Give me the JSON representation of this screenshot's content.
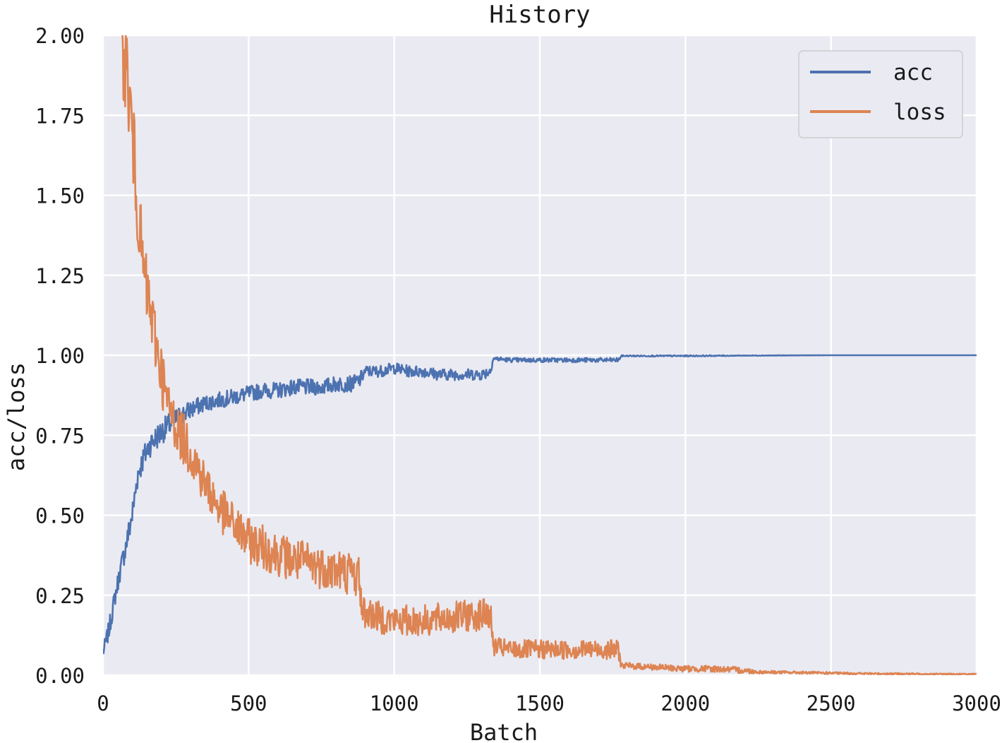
{
  "chart_data": {
    "type": "line",
    "title": "History",
    "xlabel": "Batch",
    "ylabel": "acc/loss",
    "xlim": [
      0,
      3000
    ],
    "ylim": [
      0,
      2.0
    ],
    "xticks": [
      0,
      500,
      1000,
      1500,
      2000,
      2500,
      3000
    ],
    "xtick_labels": [
      "0",
      "500",
      "1000",
      "1500",
      "2000",
      "2500",
      "3000"
    ],
    "yticks": [
      0,
      0.25,
      0.5,
      0.75,
      1.0,
      1.25,
      1.5,
      1.75,
      2.0
    ],
    "ytick_labels": [
      "0.00",
      "0.25",
      "0.50",
      "0.75",
      "1.00",
      "1.25",
      "1.50",
      "1.75",
      "2.00"
    ],
    "grid": true,
    "legend": "top-right",
    "background": "#eaeaf2",
    "series": [
      {
        "name": "acc",
        "color": "#4c72b0",
        "x": [
          0,
          20,
          40,
          60,
          80,
          100,
          120,
          140,
          160,
          180,
          200,
          250,
          300,
          350,
          400,
          450,
          500,
          550,
          600,
          650,
          700,
          750,
          800,
          850,
          880,
          900,
          950,
          1000,
          1050,
          1100,
          1150,
          1200,
          1250,
          1300,
          1330,
          1340,
          1400,
          1500,
          1600,
          1700,
          1770,
          1780,
          1900,
          2000,
          2200,
          2500,
          2800,
          3000
        ],
        "y": [
          0.07,
          0.14,
          0.24,
          0.33,
          0.41,
          0.5,
          0.63,
          0.68,
          0.72,
          0.74,
          0.76,
          0.8,
          0.83,
          0.85,
          0.86,
          0.87,
          0.88,
          0.89,
          0.89,
          0.9,
          0.9,
          0.9,
          0.91,
          0.91,
          0.92,
          0.95,
          0.95,
          0.96,
          0.95,
          0.95,
          0.94,
          0.94,
          0.94,
          0.94,
          0.95,
          0.99,
          0.985,
          0.985,
          0.985,
          0.985,
          0.985,
          0.998,
          0.998,
          0.998,
          0.999,
          1.0,
          1.0,
          1.0
        ],
        "noise": [
          0.02,
          0.03,
          0.03,
          0.03,
          0.04,
          0.04,
          0.04,
          0.04,
          0.04,
          0.04,
          0.04,
          0.035,
          0.03,
          0.025,
          0.025,
          0.025,
          0.025,
          0.025,
          0.025,
          0.025,
          0.025,
          0.025,
          0.025,
          0.025,
          0.025,
          0.018,
          0.018,
          0.018,
          0.018,
          0.018,
          0.018,
          0.018,
          0.018,
          0.018,
          0.018,
          0.007,
          0.007,
          0.007,
          0.007,
          0.007,
          0.007,
          0.002,
          0.002,
          0.002,
          0.001,
          0.0,
          0.0,
          0.0
        ]
      },
      {
        "name": "loss",
        "color": "#dd8452",
        "x": [
          60,
          80,
          100,
          120,
          140,
          160,
          180,
          200,
          220,
          250,
          300,
          350,
          400,
          450,
          500,
          550,
          600,
          650,
          700,
          750,
          800,
          850,
          880,
          890,
          950,
          1000,
          1100,
          1200,
          1300,
          1330,
          1340,
          1400,
          1500,
          1600,
          1700,
          1770,
          1780,
          1900,
          2000,
          2100,
          2200,
          2250,
          2400,
          2600,
          2800,
          3000
        ],
        "y": [
          2.0,
          1.9,
          1.7,
          1.45,
          1.25,
          1.15,
          1.05,
          0.95,
          0.85,
          0.78,
          0.7,
          0.6,
          0.52,
          0.47,
          0.42,
          0.4,
          0.38,
          0.36,
          0.35,
          0.34,
          0.33,
          0.32,
          0.31,
          0.2,
          0.18,
          0.17,
          0.17,
          0.18,
          0.19,
          0.19,
          0.09,
          0.08,
          0.08,
          0.08,
          0.08,
          0.08,
          0.03,
          0.025,
          0.02,
          0.02,
          0.015,
          0.01,
          0.008,
          0.005,
          0.004,
          0.003
        ],
        "noise": [
          0.15,
          0.15,
          0.15,
          0.12,
          0.12,
          0.1,
          0.1,
          0.1,
          0.08,
          0.08,
          0.08,
          0.07,
          0.07,
          0.07,
          0.07,
          0.07,
          0.07,
          0.07,
          0.07,
          0.07,
          0.07,
          0.07,
          0.07,
          0.05,
          0.05,
          0.05,
          0.05,
          0.05,
          0.05,
          0.05,
          0.03,
          0.03,
          0.03,
          0.03,
          0.03,
          0.03,
          0.01,
          0.01,
          0.01,
          0.01,
          0.01,
          0.005,
          0.004,
          0.003,
          0.002,
          0.002
        ]
      }
    ]
  }
}
